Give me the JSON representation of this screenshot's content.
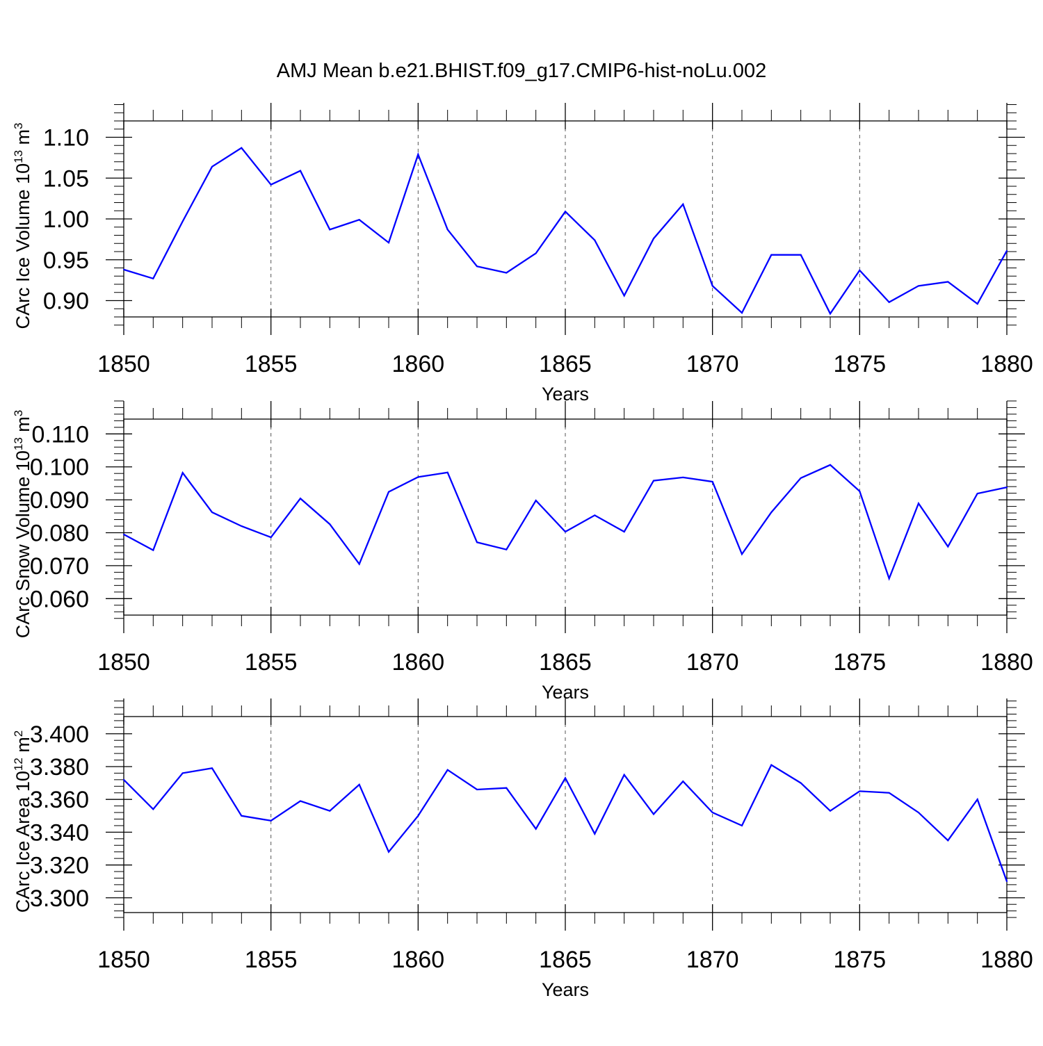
{
  "figure": {
    "title": "AMJ Mean b.e21.BHIST.f09_g17.CMIP6-hist-noLu.002",
    "line_color": "#0000ff"
  },
  "chart_data": [
    {
      "type": "line",
      "title": "AMJ Mean b.e21.BHIST.f09_g17.CMIP6-hist-noLu.002",
      "xlabel": "Years",
      "ylabel": {
        "text": "CArc Ice Volume 10",
        "exp": "13",
        "unit": " m",
        "unit_exp": "3"
      },
      "xlim": [
        1850,
        1880
      ],
      "ylim": [
        0.88,
        1.12
      ],
      "x_ticks": [
        1850,
        1855,
        1860,
        1865,
        1870,
        1875,
        1880
      ],
      "x_tick_labels": [
        "1850",
        "1855",
        "1860",
        "1865",
        "1870",
        "1875",
        "1880"
      ],
      "y_ticks": [
        0.9,
        0.95,
        1.0,
        1.05,
        1.1
      ],
      "y_tick_labels": [
        "0.90",
        "0.95",
        "1.00",
        "1.05",
        "1.10"
      ],
      "y_minor_step": 0.01,
      "grid": "vertical dashed at major x ticks",
      "x": [
        1850,
        1851,
        1852,
        1853,
        1854,
        1855,
        1856,
        1857,
        1858,
        1859,
        1860,
        1861,
        1862,
        1863,
        1864,
        1865,
        1866,
        1867,
        1868,
        1869,
        1870,
        1871,
        1872,
        1873,
        1874,
        1875,
        1876,
        1877,
        1878,
        1879,
        1880
      ],
      "series": [
        {
          "name": "CArc Ice Volume",
          "color": "#0000ff",
          "values": [
            0.938,
            0.927,
            0.997,
            1.064,
            1.087,
            1.042,
            1.059,
            0.987,
            0.999,
            0.971,
            1.079,
            0.987,
            0.942,
            0.934,
            0.958,
            1.009,
            0.974,
            0.906,
            0.976,
            1.018,
            0.918,
            0.885,
            0.956,
            0.956,
            0.884,
            0.937,
            0.898,
            0.918,
            0.923,
            0.896,
            0.961
          ]
        }
      ]
    },
    {
      "type": "line",
      "xlabel": "Years",
      "ylabel": {
        "text": "CArc Snow Volume 10",
        "exp": "13",
        "unit": " m",
        "unit_exp": "3"
      },
      "xlim": [
        1850,
        1880
      ],
      "ylim": [
        0.055,
        0.1145
      ],
      "x_ticks": [
        1850,
        1855,
        1860,
        1865,
        1870,
        1875,
        1880
      ],
      "x_tick_labels": [
        "1850",
        "1855",
        "1860",
        "1865",
        "1870",
        "1875",
        "1880"
      ],
      "y_ticks": [
        0.06,
        0.07,
        0.08,
        0.09,
        0.1,
        0.11
      ],
      "y_tick_labels": [
        "0.060",
        "0.070",
        "0.080",
        "0.090",
        "0.100",
        "0.110"
      ],
      "y_minor_step": 0.002,
      "grid": "vertical dashed at major x ticks",
      "x": [
        1850,
        1851,
        1852,
        1853,
        1854,
        1855,
        1856,
        1857,
        1858,
        1859,
        1860,
        1861,
        1862,
        1863,
        1864,
        1865,
        1866,
        1867,
        1868,
        1869,
        1870,
        1871,
        1872,
        1873,
        1874,
        1875,
        1876,
        1877,
        1878,
        1879,
        1880
      ],
      "series": [
        {
          "name": "CArc Snow Volume",
          "color": "#0000ff",
          "values": [
            0.0795,
            0.0747,
            0.0982,
            0.0862,
            0.082,
            0.0786,
            0.0904,
            0.0826,
            0.0705,
            0.0924,
            0.0969,
            0.0983,
            0.0771,
            0.0749,
            0.0898,
            0.0803,
            0.0853,
            0.0803,
            0.0958,
            0.0968,
            0.0955,
            0.0735,
            0.0862,
            0.0966,
            0.1006,
            0.0926,
            0.0661,
            0.0889,
            0.0758,
            0.0919,
            0.0938
          ]
        }
      ]
    },
    {
      "type": "line",
      "xlabel": "Years",
      "ylabel": {
        "text": "CArc Ice Area 10",
        "exp": "12",
        "unit": " m",
        "unit_exp": "2"
      },
      "xlim": [
        1850,
        1880
      ],
      "ylim": [
        3.291,
        3.4105
      ],
      "x_ticks": [
        1850,
        1855,
        1860,
        1865,
        1870,
        1875,
        1880
      ],
      "x_tick_labels": [
        "1850",
        "1855",
        "1860",
        "1865",
        "1870",
        "1875",
        "1880"
      ],
      "y_ticks": [
        3.3,
        3.32,
        3.34,
        3.36,
        3.38,
        3.4
      ],
      "y_tick_labels": [
        "3.300",
        "3.320",
        "3.340",
        "3.360",
        "3.380",
        "3.400"
      ],
      "y_minor_step": 0.004,
      "grid": "vertical dashed at major x ticks",
      "x": [
        1850,
        1851,
        1852,
        1853,
        1854,
        1855,
        1856,
        1857,
        1858,
        1859,
        1860,
        1861,
        1862,
        1863,
        1864,
        1865,
        1866,
        1867,
        1868,
        1869,
        1870,
        1871,
        1872,
        1873,
        1874,
        1875,
        1876,
        1877,
        1878,
        1879,
        1880
      ],
      "series": [
        {
          "name": "CArc Ice Area",
          "color": "#0000ff",
          "values": [
            3.372,
            3.354,
            3.376,
            3.379,
            3.35,
            3.347,
            3.359,
            3.353,
            3.369,
            3.328,
            3.35,
            3.378,
            3.366,
            3.367,
            3.342,
            3.373,
            3.339,
            3.375,
            3.351,
            3.371,
            3.352,
            3.344,
            3.381,
            3.37,
            3.353,
            3.365,
            3.364,
            3.352,
            3.335,
            3.36,
            3.31
          ]
        }
      ]
    }
  ]
}
